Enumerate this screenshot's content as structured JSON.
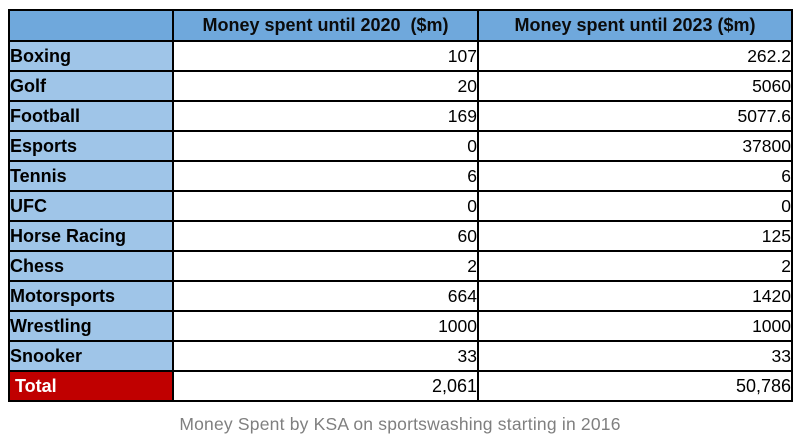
{
  "chart_data": {
    "type": "table",
    "title": "Money Spent by KSA on sportswashing starting in 2016",
    "columns": [
      "",
      "Money spent until 2020  ($m)",
      "Money spent until 2023 ($m)"
    ],
    "categories": [
      "Boxing",
      "Golf",
      "Football",
      "Esports",
      "Tennis",
      "UFC",
      "Horse Racing",
      "Chess",
      "Motorsports",
      "Wrestling",
      "Snooker"
    ],
    "series": [
      {
        "name": "Money spent until 2020 ($m)",
        "values": [
          107,
          20,
          169,
          0,
          6,
          0,
          60,
          2,
          664,
          1000,
          33
        ]
      },
      {
        "name": "Money spent until 2023 ($m)",
        "values": [
          262.2,
          5060,
          5077.6,
          37800,
          6,
          0,
          125,
          2,
          1420,
          1000,
          33
        ]
      }
    ],
    "totals": {
      "label": "Total",
      "spent_2020": 2061,
      "spent_2023": 50786
    }
  },
  "table": {
    "header": {
      "col_sport": "",
      "col_2020": "Money spent until 2020  ($m)",
      "col_2023": "Money spent until 2023 ($m)"
    },
    "rows": [
      {
        "label": "Boxing",
        "v2020": "107",
        "v2023": "262.2"
      },
      {
        "label": "Golf",
        "v2020": "20",
        "v2023": "5060"
      },
      {
        "label": "Football",
        "v2020": "169",
        "v2023": "5077.6"
      },
      {
        "label": "Esports",
        "v2020": "0",
        "v2023": "37800"
      },
      {
        "label": "Tennis",
        "v2020": "6",
        "v2023": "6"
      },
      {
        "label": "UFC",
        "v2020": "0",
        "v2023": "0"
      },
      {
        "label": "Horse Racing",
        "v2020": "60",
        "v2023": "125"
      },
      {
        "label": "Chess",
        "v2020": "2",
        "v2023": "2"
      },
      {
        "label": "Motorsports",
        "v2020": "664",
        "v2023": "1420"
      },
      {
        "label": "Wrestling",
        "v2020": "1000",
        "v2023": "1000"
      },
      {
        "label": "Snooker",
        "v2020": "33",
        "v2023": "33"
      }
    ],
    "total": {
      "label": "Total",
      "v2020": "2,061",
      "v2023": "50,786"
    }
  },
  "caption": "Money Spent by KSA on sportswashing starting in 2016",
  "colors": {
    "header_bg": "#6FA8DC",
    "row_label_bg": "#9FC5E8",
    "total_bg": "#C00000",
    "total_text": "#FFFFFF",
    "border": "#000000",
    "body_text": "#000000",
    "caption_text": "#7F7F7F"
  }
}
